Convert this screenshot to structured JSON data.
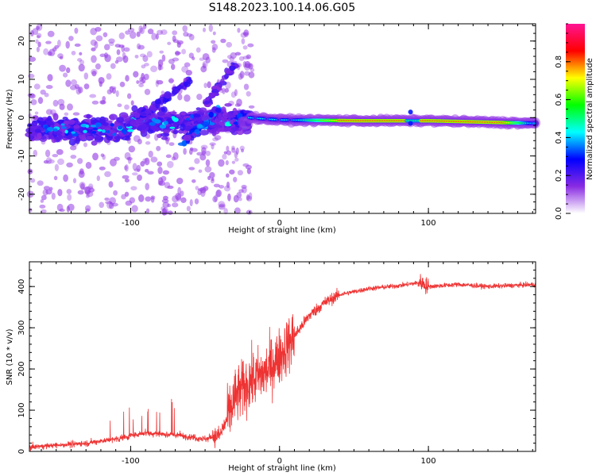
{
  "title": "S148.2023.100.14.06.G05",
  "chart_data": [
    {
      "type": "heatmap",
      "xlabel": "Height of straight line (km)",
      "ylabel": "Frequency (Hz)",
      "xlim": [
        -168,
        172
      ],
      "ylim": [
        -25,
        24.5
      ],
      "x_ticks": [
        -100,
        0,
        100
      ],
      "y_ticks": [
        -20,
        -10,
        0,
        10,
        20
      ],
      "colorbar": {
        "label": "Normalized spectral amplitude",
        "range": [
          0,
          1
        ],
        "ticks": [
          0.0,
          0.2,
          0.4,
          0.6,
          0.8
        ],
        "colors": [
          "#ffffff",
          "#8a2be2",
          "#0000ff",
          "#00ffff",
          "#00ff00",
          "#ffff00",
          "#ff0000",
          "#ff1493"
        ]
      },
      "ridge": {
        "description_points": [
          {
            "x": -20,
            "y": 0.0
          },
          {
            "x": 0,
            "y": -0.6
          },
          {
            "x": 50,
            "y": -0.8
          },
          {
            "x": 100,
            "y": -0.8
          },
          {
            "x": 172,
            "y": -1.5
          }
        ]
      }
    },
    {
      "type": "line",
      "xlabel": "Height of straight line (km)",
      "ylabel": "SNR (10 * v/v)",
      "xlim": [
        -168,
        172
      ],
      "ylim": [
        0,
        460
      ],
      "x_ticks": [
        -100,
        0,
        100
      ],
      "y_ticks": [
        0,
        100,
        200,
        300,
        400
      ],
      "series": [
        {
          "color": "#ee3333",
          "x": [
            -168,
            -150,
            -130,
            -110,
            -90,
            -70,
            -50,
            -40,
            -35,
            -30,
            -20,
            -10,
            0,
            10,
            20,
            30,
            40,
            60,
            80,
            95,
            100,
            120,
            140,
            172
          ],
          "y": [
            10,
            15,
            20,
            30,
            45,
            40,
            30,
            40,
            80,
            130,
            170,
            190,
            230,
            280,
            330,
            360,
            380,
            395,
            402,
            410,
            400,
            405,
            400,
            405
          ]
        }
      ]
    }
  ]
}
